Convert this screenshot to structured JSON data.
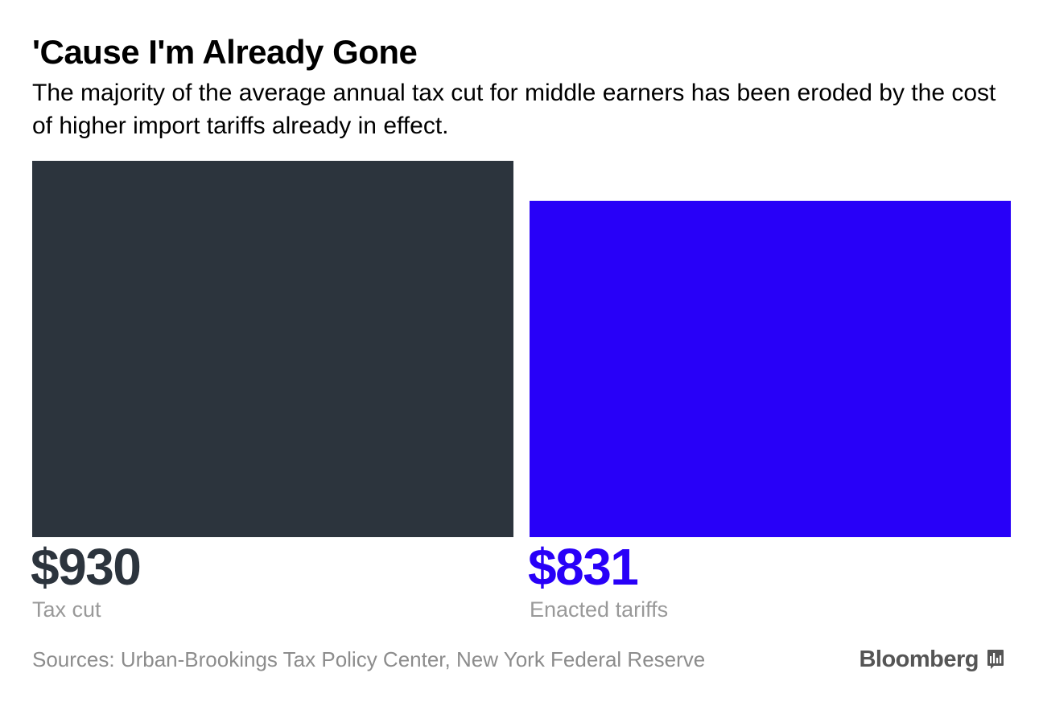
{
  "header": {
    "title": "'Cause I'm Already Gone",
    "subtitle": "The majority of the average annual tax cut for middle earners has been eroded by the cost of higher import tariffs already in effect."
  },
  "chart_data": {
    "type": "bar",
    "categories": [
      "Tax cut",
      "Enacted tariffs"
    ],
    "values": [
      930,
      831
    ],
    "value_labels": [
      "$930",
      "$831"
    ],
    "colors": [
      "#2c343d",
      "#2800f8"
    ],
    "title": "'Cause I'm Already Gone",
    "xlabel": "",
    "ylabel": "",
    "ylim": [
      0,
      930
    ],
    "grid": false,
    "legend": "none"
  },
  "footer": {
    "source": "Sources: Urban-Brookings Tax Policy Center, New York Federal Reserve",
    "brand": "Bloomberg",
    "brand_icon": "bloomberg-chart-icon",
    "brand_color": "#555555",
    "source_color": "#8c8c8c"
  }
}
